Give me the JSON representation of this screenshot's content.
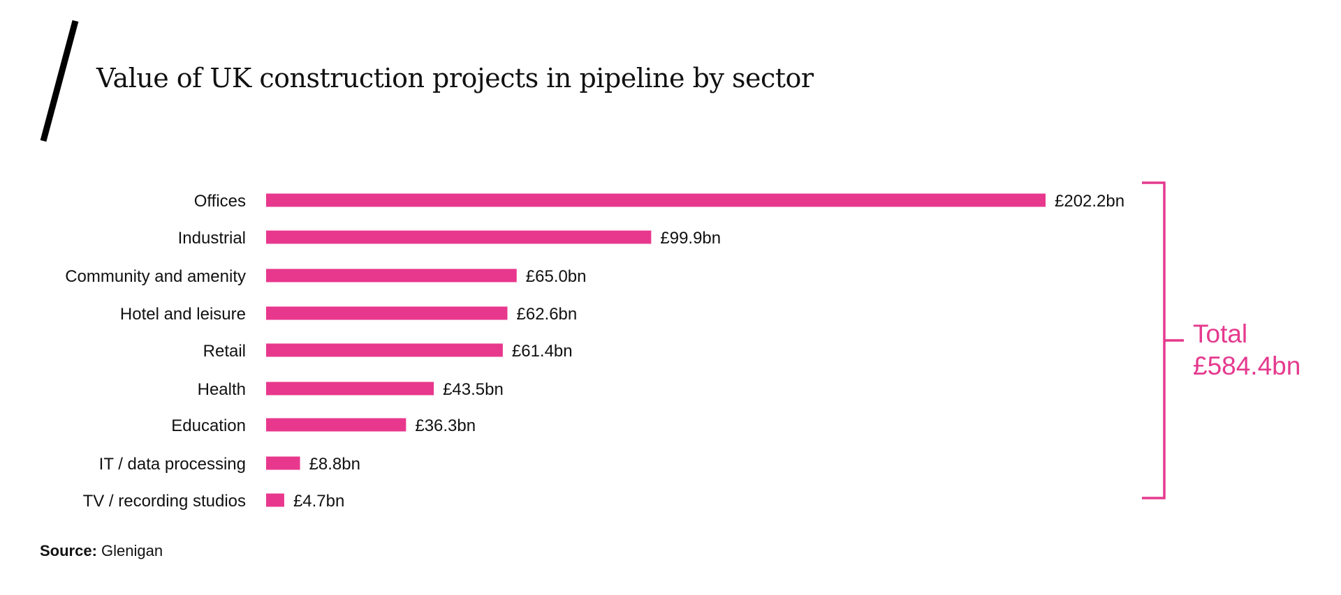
{
  "title": "Value of UK construction projects in pipeline by sector",
  "colors": {
    "bar": "#e8388d",
    "accent": "#e5398e",
    "text": "#111111"
  },
  "total": {
    "label": "Total",
    "value": "£584.4bn"
  },
  "source": {
    "label": "Source:",
    "text": "Glenigan"
  },
  "chart_data": {
    "type": "bar",
    "orientation": "horizontal",
    "unit": "£bn",
    "categories": [
      "Offices",
      "Industrial",
      "Community and amenity",
      "Hotel and leisure",
      "Retail",
      "Health",
      "Education",
      "IT / data processing",
      "TV / recording studios"
    ],
    "values": [
      202.2,
      99.9,
      65.0,
      62.6,
      61.4,
      43.5,
      36.3,
      8.8,
      4.7
    ],
    "value_labels": [
      "£202.2bn",
      "£99.9bn",
      "£65.0bn",
      "£62.6bn",
      "£61.4bn",
      "£43.5bn",
      "£36.3bn",
      "£8.8bn",
      "£4.7bn"
    ],
    "title": "Value of UK construction projects in pipeline by sector",
    "xlabel": "",
    "ylabel": "",
    "xlim": [
      0,
      202.2
    ],
    "grid": false,
    "legend": "none"
  }
}
